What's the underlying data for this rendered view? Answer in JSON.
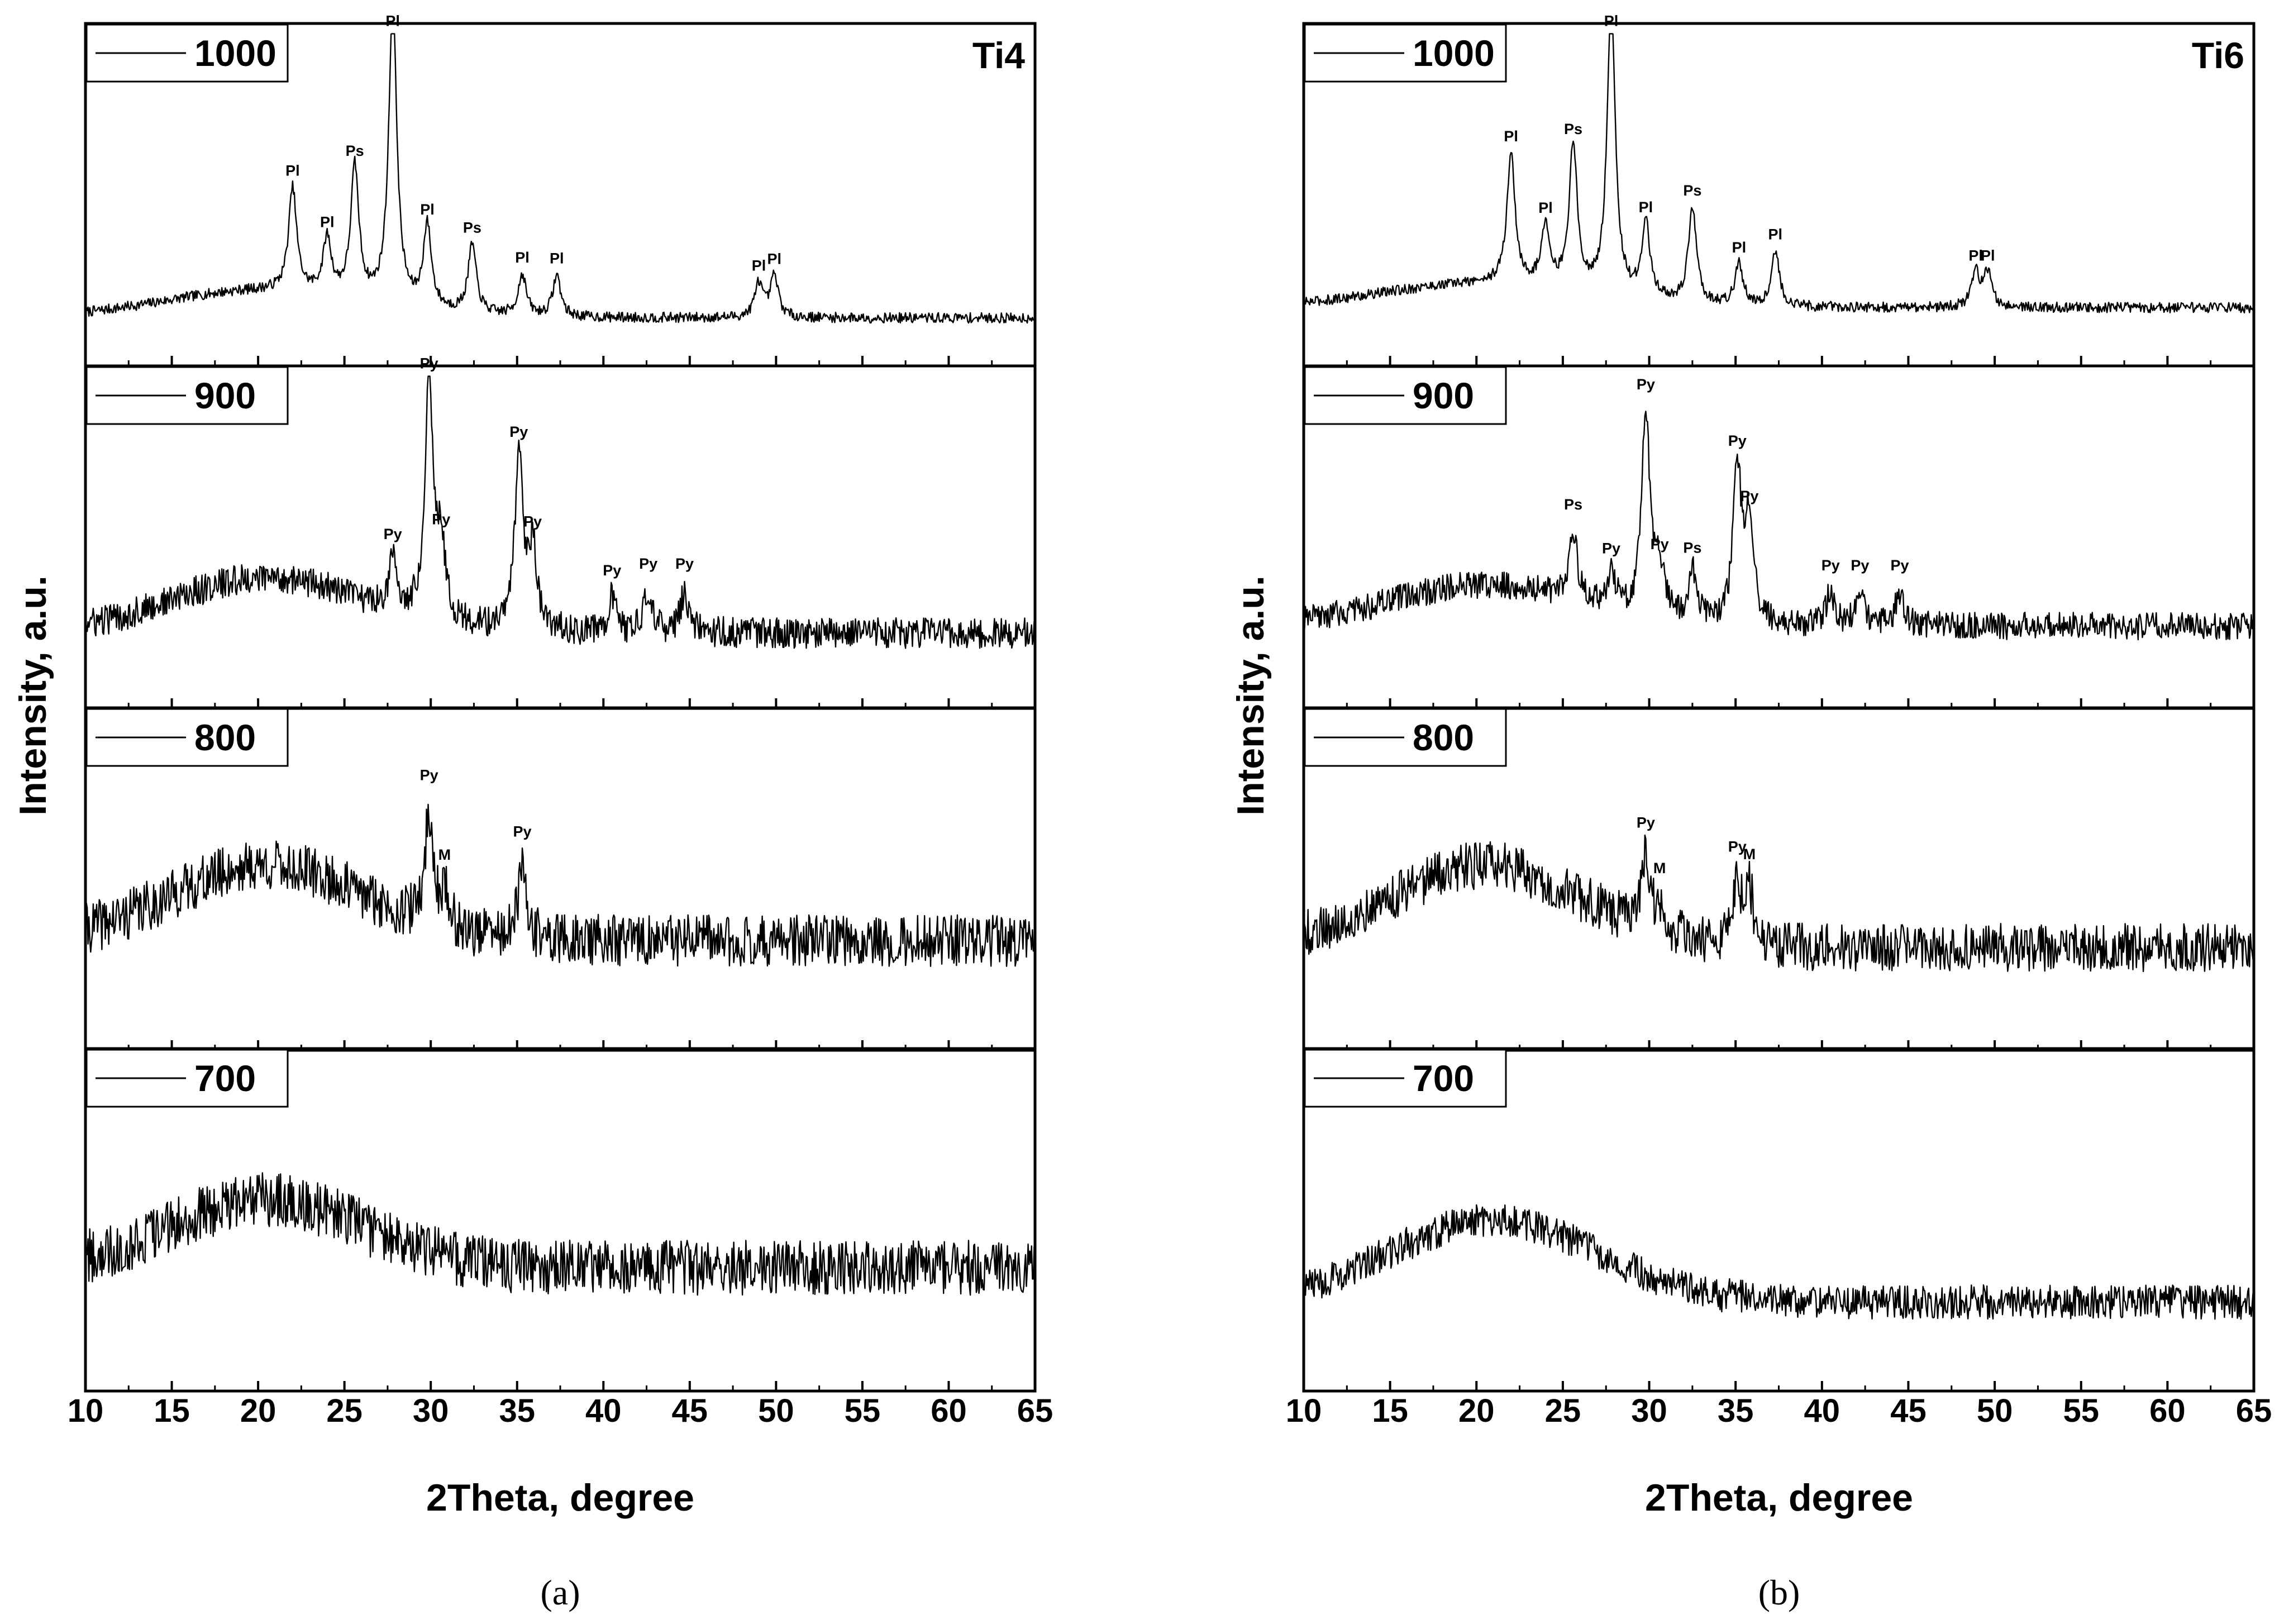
{
  "chart_data": [
    {
      "type": "line",
      "panel_label": "(a)",
      "sample": "Ti4",
      "xlabel": "2Theta, degree",
      "ylabel": "Intensity, a.u.",
      "xlim": [
        10,
        65
      ],
      "x_ticks": [
        10,
        15,
        20,
        25,
        30,
        35,
        40,
        45,
        50,
        55,
        60,
        65
      ],
      "grid": false,
      "subplots": [
        {
          "legend": "1000",
          "baseline": 0.14,
          "noise": 0.03,
          "humps": [
            [
              20.5,
              6,
              0.08
            ]
          ],
          "peaks": [
            {
              "x": 22.0,
              "h": 0.3,
              "label": "Pl"
            },
            {
              "x": 24.0,
              "h": 0.16,
              "label": "Pl"
            },
            {
              "x": 25.6,
              "h": 0.38,
              "label": "Ps"
            },
            {
              "x": 27.8,
              "h": 0.88,
              "label": "Pl"
            },
            {
              "x": 29.8,
              "h": 0.24,
              "label": "Pl"
            },
            {
              "x": 32.4,
              "h": 0.2,
              "label": "Ps"
            },
            {
              "x": 35.3,
              "h": 0.12,
              "label": "Pl"
            },
            {
              "x": 37.3,
              "h": 0.12,
              "label": "Pl"
            },
            {
              "x": 49.0,
              "h": 0.1,
              "label": "Pl"
            },
            {
              "x": 49.9,
              "h": 0.12,
              "label": "Pl"
            }
          ]
        },
        {
          "legend": "900",
          "baseline": 0.22,
          "noise": 0.09,
          "humps": [
            [
              20.5,
              5.5,
              0.16
            ]
          ],
          "peaks": [
            {
              "x": 27.8,
              "h": 0.14,
              "label": "Py"
            },
            {
              "x": 29.9,
              "h": 0.72,
              "label": "Py"
            },
            {
              "x": 30.6,
              "h": 0.22,
              "label": "Py"
            },
            {
              "x": 35.1,
              "h": 0.5,
              "label": "Py"
            },
            {
              "x": 35.9,
              "h": 0.24,
              "label": "Py"
            },
            {
              "x": 40.5,
              "h": 0.1,
              "label": "Py"
            },
            {
              "x": 42.6,
              "h": 0.12,
              "label": "Py"
            },
            {
              "x": 44.7,
              "h": 0.12,
              "label": "Py"
            }
          ]
        },
        {
          "legend": "800",
          "baseline": 0.32,
          "noise": 0.15,
          "humps": [
            [
              20.5,
              5.5,
              0.22
            ]
          ],
          "peaks": [
            {
              "x": 29.9,
              "h": 0.32,
              "label": "Py"
            },
            {
              "x": 30.8,
              "h": 0.1,
              "label": "M"
            },
            {
              "x": 35.3,
              "h": 0.2,
              "label": "Py"
            }
          ]
        },
        {
          "legend": "700",
          "baseline": 0.36,
          "noise": 0.16,
          "humps": [
            [
              20.5,
              5.5,
              0.2
            ]
          ],
          "peaks": []
        }
      ]
    },
    {
      "type": "line",
      "panel_label": "(b)",
      "sample": "Ti6",
      "xlabel": "2Theta, degree",
      "ylabel": "Intensity, a.u.",
      "xlim": [
        10,
        65
      ],
      "x_ticks": [
        10,
        15,
        20,
        25,
        30,
        35,
        40,
        45,
        50,
        55,
        60,
        65
      ],
      "grid": false,
      "subplots": [
        {
          "legend": "1000",
          "baseline": 0.17,
          "noise": 0.03,
          "humps": [
            [
              20.5,
              6,
              0.07
            ]
          ],
          "peaks": [
            {
              "x": 22.0,
              "h": 0.38,
              "label": "Pl"
            },
            {
              "x": 24.0,
              "h": 0.18,
              "label": "Pl"
            },
            {
              "x": 25.6,
              "h": 0.42,
              "label": "Ps"
            },
            {
              "x": 27.8,
              "h": 0.86,
              "label": "Pl"
            },
            {
              "x": 29.8,
              "h": 0.22,
              "label": "Pl"
            },
            {
              "x": 32.5,
              "h": 0.28,
              "label": "Ps"
            },
            {
              "x": 35.2,
              "h": 0.12,
              "label": "Pl"
            },
            {
              "x": 37.3,
              "h": 0.16,
              "label": "Pl"
            },
            {
              "x": 48.9,
              "h": 0.1,
              "label": "Pl"
            },
            {
              "x": 49.6,
              "h": 0.1,
              "label": "Pl"
            }
          ]
        },
        {
          "legend": "900",
          "baseline": 0.24,
          "noise": 0.08,
          "humps": [
            [
              20.5,
              5.5,
              0.12
            ]
          ],
          "peaks": [
            {
              "x": 25.6,
              "h": 0.2,
              "label": "Ps"
            },
            {
              "x": 27.8,
              "h": 0.1,
              "label": "Py"
            },
            {
              "x": 29.8,
              "h": 0.6,
              "label": "Py"
            },
            {
              "x": 30.6,
              "h": 0.14,
              "label": "Py"
            },
            {
              "x": 32.5,
              "h": 0.14,
              "label": "Ps"
            },
            {
              "x": 35.1,
              "h": 0.46,
              "label": "Py"
            },
            {
              "x": 35.8,
              "h": 0.3,
              "label": "Py"
            },
            {
              "x": 40.5,
              "h": 0.1,
              "label": "Py"
            },
            {
              "x": 42.2,
              "h": 0.1,
              "label": "Py"
            },
            {
              "x": 44.5,
              "h": 0.1,
              "label": "Py"
            }
          ]
        },
        {
          "legend": "800",
          "baseline": 0.3,
          "noise": 0.14,
          "humps": [
            [
              20.5,
              5.5,
              0.24
            ]
          ],
          "peaks": [
            {
              "x": 29.8,
              "h": 0.2,
              "label": "Py"
            },
            {
              "x": 30.6,
              "h": 0.08,
              "label": "M"
            },
            {
              "x": 35.1,
              "h": 0.18,
              "label": "Py"
            },
            {
              "x": 35.8,
              "h": 0.16,
              "label": "M"
            }
          ]
        },
        {
          "legend": "700",
          "baseline": 0.26,
          "noise": 0.1,
          "humps": [
            [
              21.0,
              6,
              0.24
            ]
          ],
          "peaks": []
        }
      ]
    }
  ]
}
